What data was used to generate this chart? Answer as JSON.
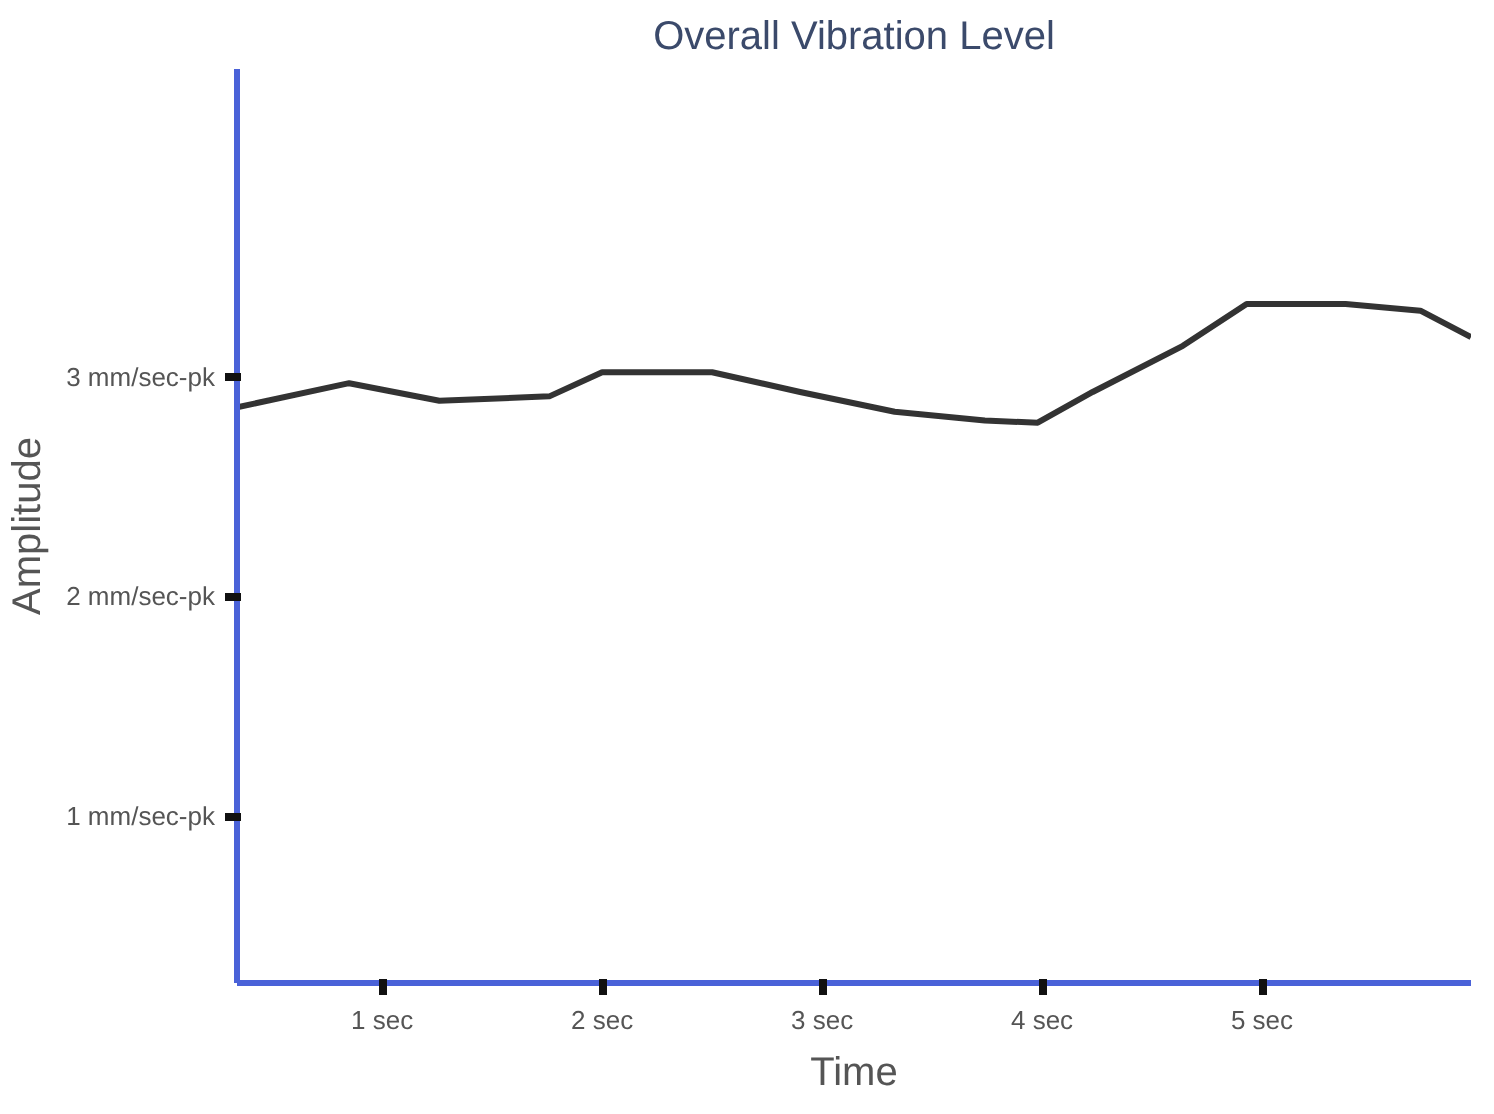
{
  "chart_data": {
    "type": "line",
    "title": "Overall Vibration Level",
    "xlabel": "Time",
    "ylabel": "Amplitude",
    "x": [
      0.34,
      0.85,
      1.26,
      1.76,
      2.0,
      2.5,
      2.9,
      3.33,
      3.74,
      3.98,
      4.23,
      4.64,
      4.93,
      5.38,
      5.72,
      5.95
    ],
    "series": [
      {
        "color": "#333333",
        "values": [
          2.86,
          2.97,
          2.89,
          2.91,
          3.02,
          3.02,
          2.93,
          2.84,
          2.8,
          2.79,
          2.93,
          3.14,
          3.33,
          3.33,
          3.3,
          3.18
        ]
      }
    ],
    "xlim": [
      0.34,
      5.95
    ],
    "ylim": [
      0.24,
      4.4
    ],
    "xticks": [
      {
        "value": 1,
        "label": "1 sec"
      },
      {
        "value": 2,
        "label": "2 sec"
      },
      {
        "value": 3,
        "label": "3 sec"
      },
      {
        "value": 4,
        "label": "4 sec"
      },
      {
        "value": 5,
        "label": "5 sec"
      }
    ],
    "yticks": [
      {
        "value": 1,
        "label": "1 mm/sec-pk"
      },
      {
        "value": 2,
        "label": "2 mm/sec-pk"
      },
      {
        "value": 3,
        "label": "3 mm/sec-pk"
      }
    ],
    "grid": false,
    "marker": "none",
    "line_style": "solid"
  }
}
